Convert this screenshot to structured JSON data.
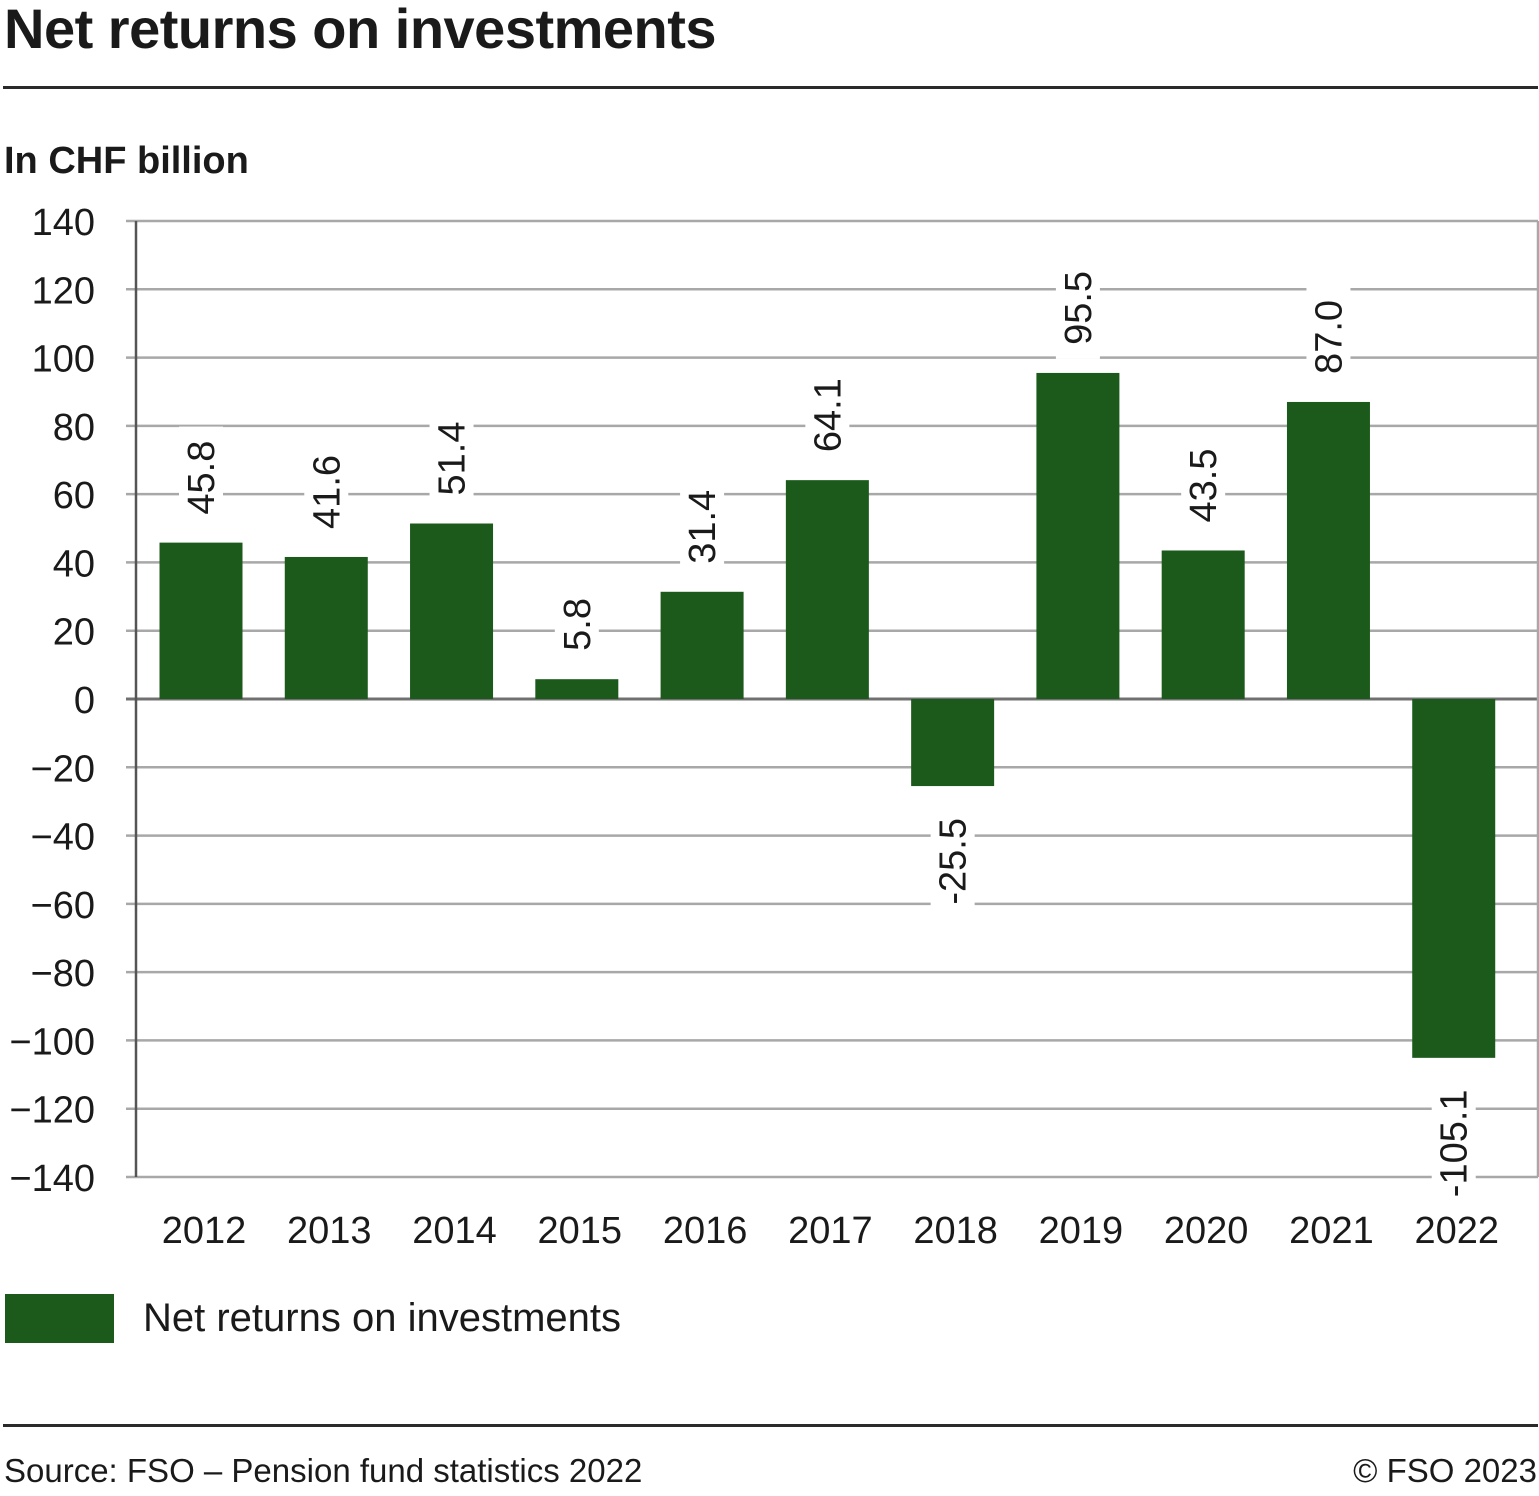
{
  "header": {
    "title": "Net returns on investments",
    "subtitle": "In CHF billion"
  },
  "chart_data": {
    "type": "bar",
    "title": "Net returns on investments",
    "ylabel": "In CHF billion",
    "xlabel": "",
    "categories": [
      "2012",
      "2013",
      "2014",
      "2015",
      "2016",
      "2017",
      "2018",
      "2019",
      "2020",
      "2021",
      "2022"
    ],
    "series": [
      {
        "name": "Net returns on investments",
        "values": [
          45.8,
          41.6,
          51.4,
          5.8,
          31.4,
          64.1,
          -25.5,
          95.5,
          43.5,
          87.0,
          -105.1
        ],
        "labels": [
          "45.8",
          "41.6",
          "51.4",
          "5.8",
          "31.4",
          "64.1",
          "-25.5",
          "95.5",
          "43.5",
          "87.0",
          "-105.1"
        ],
        "color": "#1b5a1b"
      }
    ],
    "ylim": [
      -140,
      140
    ],
    "yticks": [
      140,
      120,
      100,
      80,
      60,
      40,
      20,
      0,
      -20,
      -40,
      -60,
      -80,
      -100,
      -120,
      -140
    ],
    "ytick_labels": [
      "140",
      "120",
      "100",
      "80",
      "60",
      "40",
      "20",
      "0",
      "−20",
      "−40",
      "−60",
      "−80",
      "−100",
      "−120",
      "−140"
    ],
    "grid": true,
    "legend_position": "bottom-left",
    "data_label_rotation": "vertical"
  },
  "legend": {
    "label": "Net returns on investments",
    "color": "#1b5a1b"
  },
  "footer": {
    "source": "Source: FSO – Pension fund statistics 2022",
    "copyright": "© FSO 2023"
  },
  "colors": {
    "bar": "#1b5a1b",
    "grid": "#a8a8a8",
    "axis": "#555555",
    "text": "#1a1a1a"
  }
}
